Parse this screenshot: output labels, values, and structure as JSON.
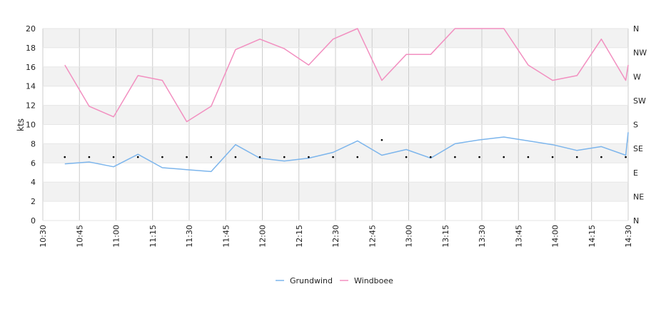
{
  "chart_data": {
    "type": "line",
    "ylabel": "kts",
    "ylim": [
      0,
      20
    ],
    "y_ticks": [
      0,
      2,
      4,
      6,
      8,
      10,
      12,
      14,
      16,
      18,
      20
    ],
    "x_range_minutes": [
      630,
      870
    ],
    "x_tick_labels": [
      "10:30",
      "10:45",
      "11:00",
      "11:15",
      "11:30",
      "11:45",
      "12:00",
      "12:15",
      "12:30",
      "12:45",
      "13:00",
      "13:15",
      "13:30",
      "13:45",
      "14:00",
      "14:15",
      "14:30"
    ],
    "direction_axis_labels": [
      "N",
      "NW",
      "W",
      "SW",
      "S",
      "SE",
      "E",
      "NE",
      "N"
    ],
    "direction_axis_range_deg": [
      0,
      360
    ],
    "grid": true,
    "legend_position": "bottom",
    "x_times": [
      "10:39",
      "10:49",
      "10:59",
      "11:09",
      "11:19",
      "11:29",
      "11:39",
      "11:49",
      "11:59",
      "12:09",
      "12:19",
      "12:29",
      "12:39",
      "12:49",
      "12:59",
      "13:09",
      "13:19",
      "13:29",
      "13:39",
      "13:49",
      "13:59",
      "14:09",
      "14:19",
      "14:29",
      "14:30"
    ],
    "series": [
      {
        "name": "Grundwind",
        "color": "#7cb5ec",
        "values": [
          5.9,
          6.1,
          5.6,
          6.9,
          5.5,
          5.3,
          5.1,
          7.9,
          6.5,
          6.2,
          6.5,
          7.1,
          8.3,
          6.8,
          7.4,
          6.5,
          8.0,
          8.4,
          8.7,
          8.3,
          7.9,
          7.3,
          7.7,
          6.8,
          9.2
        ]
      },
      {
        "name": "Windboee",
        "color": "#f28fc0",
        "values": [
          16.2,
          11.9,
          10.8,
          15.1,
          14.6,
          10.3,
          11.9,
          17.8,
          18.9,
          17.9,
          16.2,
          18.9,
          20.0,
          14.6,
          17.3,
          17.3,
          20.0,
          20.0,
          20.0,
          16.2,
          14.6,
          15.1,
          18.9,
          14.6,
          16.2
        ]
      }
    ],
    "direction_points": {
      "x": [
        "10:39",
        "10:49",
        "10:59",
        "11:09",
        "11:19",
        "11:29",
        "11:39",
        "11:49",
        "11:59",
        "12:09",
        "12:19",
        "12:29",
        "12:39",
        "12:49",
        "12:59",
        "13:09",
        "13:19",
        "13:29",
        "13:39",
        "13:49",
        "13:59",
        "14:09",
        "14:19",
        "14:29"
      ],
      "deg": [
        119,
        119,
        119,
        119,
        119,
        119,
        119,
        119,
        119,
        119,
        119,
        119,
        119,
        151,
        119,
        119,
        119,
        119,
        119,
        119,
        119,
        119,
        119,
        119
      ]
    }
  }
}
